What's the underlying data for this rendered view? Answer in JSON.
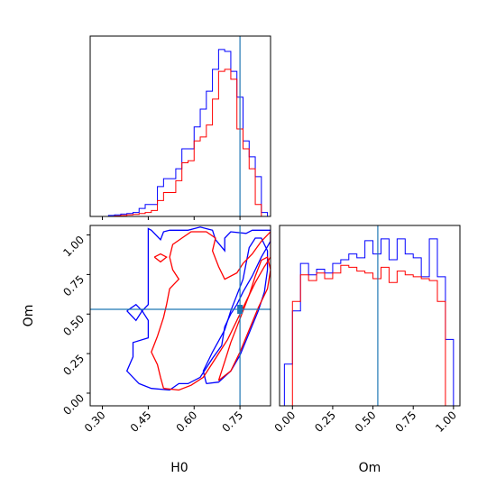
{
  "chart_data": [
    {
      "type": "histogram",
      "panel": "H0 marginal",
      "xlim": [
        0.26,
        0.85
      ],
      "truth": 0.75,
      "bin_edges": [
        0.32,
        0.34,
        0.36,
        0.38,
        0.4,
        0.42,
        0.44,
        0.46,
        0.48,
        0.5,
        0.52,
        0.54,
        0.56,
        0.58,
        0.6,
        0.62,
        0.64,
        0.66,
        0.68,
        0.7,
        0.72,
        0.74,
        0.76,
        0.78,
        0.8,
        0.82,
        0.84
      ],
      "series": [
        {
          "color": "#0000ff",
          "values": [
            0.005,
            0.008,
            0.012,
            0.015,
            0.02,
            0.04,
            0.06,
            0.06,
            0.15,
            0.19,
            0.19,
            0.24,
            0.34,
            0.34,
            0.45,
            0.54,
            0.63,
            0.74,
            0.84,
            0.83,
            0.73,
            0.6,
            0.38,
            0.3,
            0.2,
            0.02
          ]
        },
        {
          "color": "#ff0000",
          "values": [
            0.0,
            0.002,
            0.005,
            0.008,
            0.01,
            0.015,
            0.02,
            0.03,
            0.08,
            0.12,
            0.12,
            0.18,
            0.27,
            0.28,
            0.38,
            0.4,
            0.46,
            0.59,
            0.73,
            0.74,
            0.69,
            0.44,
            0.34,
            0.24,
            0.06,
            0.0
          ]
        }
      ]
    },
    {
      "type": "contour",
      "panel": "H0 vs Om joint",
      "xlabel": "H0",
      "ylabel": "Om",
      "xlim": [
        0.26,
        0.85
      ],
      "ylim": [
        -0.08,
        1.06
      ],
      "xticks": [
        "0.30",
        "0.45",
        "0.60",
        "0.75"
      ],
      "yticks": [
        "0.00",
        "0.25",
        "0.50",
        "0.75",
        "1.00"
      ],
      "truth": [
        0.75,
        0.53
      ],
      "contours": [
        {
          "color": "#0000ff",
          "points": [
            [
              0.42,
              0.06
            ],
            [
              0.46,
              0.03
            ],
            [
              0.52,
              0.02
            ],
            [
              0.55,
              0.06
            ],
            [
              0.58,
              0.06
            ],
            [
              0.62,
              0.1
            ],
            [
              0.66,
              0.22
            ],
            [
              0.69,
              0.3
            ],
            [
              0.7,
              0.42
            ],
            [
              0.72,
              0.5
            ],
            [
              0.74,
              0.56
            ],
            [
              0.76,
              0.64
            ],
            [
              0.79,
              0.74
            ],
            [
              0.82,
              0.86
            ],
            [
              0.85,
              0.96
            ],
            [
              0.85,
              1.03
            ],
            [
              0.79,
              1.03
            ],
            [
              0.77,
              1.01
            ],
            [
              0.72,
              1.02
            ],
            [
              0.7,
              0.98
            ],
            [
              0.7,
              0.9
            ],
            [
              0.67,
              0.97
            ],
            [
              0.66,
              1.03
            ],
            [
              0.62,
              1.05
            ],
            [
              0.58,
              1.03
            ],
            [
              0.52,
              1.03
            ],
            [
              0.5,
              1.02
            ],
            [
              0.49,
              0.97
            ],
            [
              0.46,
              1.03
            ],
            [
              0.45,
              1.04
            ],
            [
              0.45,
              0.9
            ],
            [
              0.45,
              0.56
            ],
            [
              0.43,
              0.52
            ],
            [
              0.45,
              0.46
            ],
            [
              0.45,
              0.35
            ],
            [
              0.4,
              0.32
            ],
            [
              0.4,
              0.23
            ],
            [
              0.38,
              0.14
            ],
            [
              0.42,
              0.06
            ]
          ]
        },
        {
          "color": "#0000ff",
          "points": [
            [
              0.64,
              0.06
            ],
            [
              0.68,
              0.07
            ],
            [
              0.72,
              0.14
            ],
            [
              0.75,
              0.24
            ],
            [
              0.78,
              0.38
            ],
            [
              0.81,
              0.52
            ],
            [
              0.83,
              0.64
            ],
            [
              0.84,
              0.78
            ],
            [
              0.84,
              0.9
            ],
            [
              0.82,
              0.98
            ],
            [
              0.8,
              0.98
            ],
            [
              0.78,
              0.92
            ],
            [
              0.77,
              0.82
            ],
            [
              0.76,
              0.72
            ],
            [
              0.74,
              0.62
            ],
            [
              0.72,
              0.52
            ],
            [
              0.7,
              0.4
            ],
            [
              0.66,
              0.26
            ],
            [
              0.63,
              0.14
            ],
            [
              0.64,
              0.06
            ]
          ]
        },
        {
          "color": "#ff0000",
          "points": [
            [
              0.5,
              0.03
            ],
            [
              0.55,
              0.02
            ],
            [
              0.59,
              0.05
            ],
            [
              0.63,
              0.1
            ],
            [
              0.67,
              0.22
            ],
            [
              0.71,
              0.34
            ],
            [
              0.74,
              0.46
            ],
            [
              0.77,
              0.58
            ],
            [
              0.8,
              0.7
            ],
            [
              0.83,
              0.8
            ],
            [
              0.85,
              0.86
            ],
            [
              0.85,
              1.02
            ],
            [
              0.82,
              0.96
            ],
            [
              0.79,
              0.88
            ],
            [
              0.76,
              0.82
            ],
            [
              0.74,
              0.76
            ],
            [
              0.7,
              0.72
            ],
            [
              0.68,
              0.8
            ],
            [
              0.66,
              0.9
            ],
            [
              0.67,
              0.98
            ],
            [
              0.64,
              1.02
            ],
            [
              0.59,
              1.02
            ],
            [
              0.56,
              0.98
            ],
            [
              0.53,
              0.94
            ],
            [
              0.52,
              0.86
            ],
            [
              0.53,
              0.78
            ],
            [
              0.55,
              0.72
            ],
            [
              0.52,
              0.66
            ],
            [
              0.51,
              0.56
            ],
            [
              0.5,
              0.48
            ],
            [
              0.48,
              0.36
            ],
            [
              0.46,
              0.26
            ],
            [
              0.48,
              0.18
            ],
            [
              0.49,
              0.1
            ],
            [
              0.5,
              0.03
            ]
          ]
        },
        {
          "color": "#ff0000",
          "points": [
            [
              0.68,
              0.08
            ],
            [
              0.72,
              0.14
            ],
            [
              0.75,
              0.26
            ],
            [
              0.78,
              0.4
            ],
            [
              0.81,
              0.54
            ],
            [
              0.84,
              0.66
            ],
            [
              0.85,
              0.78
            ],
            [
              0.84,
              0.86
            ],
            [
              0.82,
              0.84
            ],
            [
              0.8,
              0.74
            ],
            [
              0.78,
              0.62
            ],
            [
              0.76,
              0.52
            ],
            [
              0.74,
              0.42
            ],
            [
              0.72,
              0.32
            ],
            [
              0.7,
              0.2
            ],
            [
              0.68,
              0.08
            ]
          ]
        },
        {
          "color": "#0000ff",
          "points": [
            [
              0.38,
              0.52
            ],
            [
              0.41,
              0.56
            ],
            [
              0.43,
              0.52
            ],
            [
              0.41,
              0.46
            ],
            [
              0.38,
              0.52
            ]
          ]
        },
        {
          "color": "#ff0000",
          "points": [
            [
              0.47,
              0.86
            ],
            [
              0.49,
              0.88
            ],
            [
              0.51,
              0.86
            ],
            [
              0.49,
              0.83
            ],
            [
              0.47,
              0.86
            ]
          ]
        }
      ]
    },
    {
      "type": "histogram",
      "panel": "Om marginal",
      "xlabel": "Om",
      "xlim": [
        -0.08,
        1.04
      ],
      "xticks": [
        "0.00",
        "0.25",
        "0.50",
        "0.75",
        "1.00"
      ],
      "truth": 0.53,
      "bin_edges": [
        -0.05,
        0.0,
        0.05,
        0.1,
        0.15,
        0.2,
        0.25,
        0.3,
        0.35,
        0.4,
        0.45,
        0.5,
        0.55,
        0.6,
        0.65,
        0.7,
        0.75,
        0.8,
        0.85,
        0.9,
        0.95,
        1.0
      ],
      "series": [
        {
          "color": "#0000ff",
          "values": [
            0.22,
            0.5,
            0.75,
            0.69,
            0.72,
            0.7,
            0.75,
            0.77,
            0.8,
            0.78,
            0.87,
            0.8,
            0.88,
            0.77,
            0.88,
            0.8,
            0.78,
            0.68,
            0.88,
            0.68,
            0.35
          ]
        },
        {
          "color": "#ff0000",
          "values": [
            0.0,
            0.55,
            0.69,
            0.66,
            0.7,
            0.67,
            0.7,
            0.74,
            0.73,
            0.71,
            0.7,
            0.67,
            0.73,
            0.65,
            0.71,
            0.69,
            0.68,
            0.67,
            0.66,
            0.55,
            0.0
          ]
        }
      ]
    }
  ]
}
